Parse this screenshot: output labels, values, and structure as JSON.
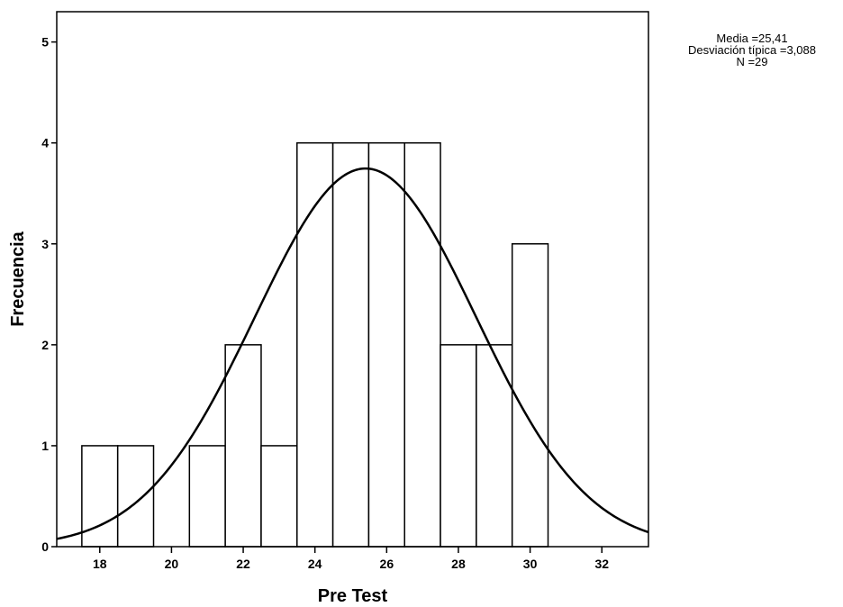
{
  "chart_data": {
    "type": "bar",
    "xlabel": "Pre Test",
    "ylabel": "Frecuencia",
    "xlim": [
      16.8,
      33.3
    ],
    "ylim": [
      0,
      5.3
    ],
    "x_ticks": [
      18,
      20,
      22,
      24,
      26,
      28,
      30,
      32
    ],
    "y_ticks": [
      0,
      1,
      2,
      3,
      4,
      5
    ],
    "x_tick_labels": [
      "18",
      "20",
      "22",
      "24",
      "26",
      "28",
      "30",
      "32"
    ],
    "y_tick_labels": [
      "0",
      "1",
      "2",
      "3",
      "4",
      "5"
    ],
    "bin_width": 1,
    "categories": [
      18,
      19,
      21,
      22,
      23,
      24,
      25,
      26,
      27,
      28,
      29,
      30
    ],
    "values": [
      1,
      1,
      1,
      2,
      1,
      4,
      4,
      4,
      4,
      2,
      2,
      3
    ],
    "normal_curve": {
      "mean": 25.41,
      "sd": 3.088,
      "n": 29
    },
    "grid": false,
    "stats_lines": [
      "Media =25,41",
      "Desviación típica =3,088",
      "N =29"
    ]
  }
}
